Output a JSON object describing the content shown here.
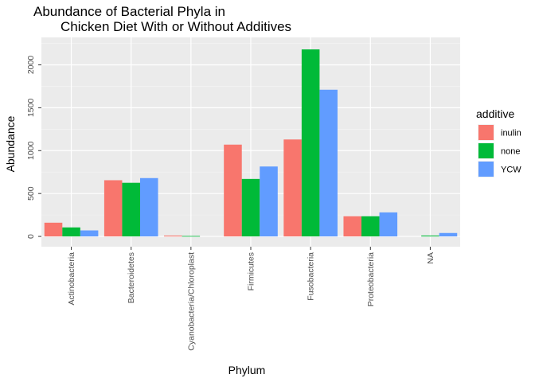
{
  "chart_data": {
    "type": "bar",
    "title_lines": [
      "Abundance of Bacterial Phyla in",
      "Chicken Diet With or Without Additives"
    ],
    "xlabel": "Phylum",
    "ylabel": "Abundance",
    "ylim": [
      -120,
      2320
    ],
    "yticks": [
      0,
      500,
      1000,
      1500,
      2000
    ],
    "grid": true,
    "legend_position": "right",
    "legend_title": "additive",
    "categories": [
      "Actinobacteria",
      "Bacteroidetes",
      "Cyanobacteria/Chloroplast",
      "Firmicutes",
      "Fusobacteria",
      "Proteobacteria",
      "NA"
    ],
    "series": [
      {
        "name": "inulin",
        "color": "#F8766D",
        "values": [
          160,
          655,
          10,
          1070,
          1130,
          235,
          0
        ]
      },
      {
        "name": "none",
        "color": "#00BA38",
        "values": [
          105,
          625,
          5,
          670,
          2180,
          235,
          10
        ]
      },
      {
        "name": "YCW",
        "color": "#619CFF",
        "values": [
          70,
          680,
          0,
          815,
          1710,
          280,
          40
        ]
      }
    ]
  }
}
